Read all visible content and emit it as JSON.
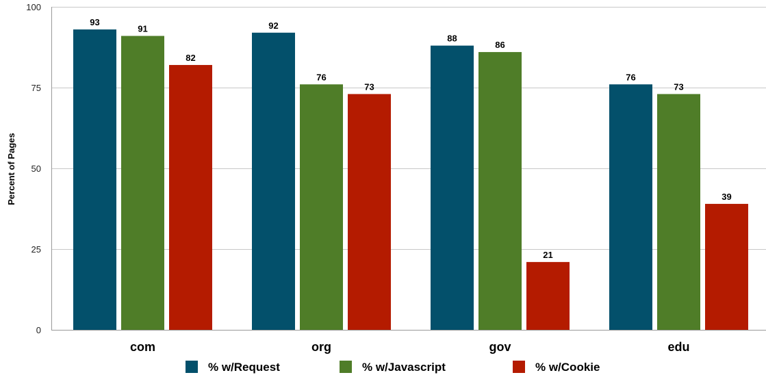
{
  "chart_data": {
    "type": "bar",
    "categories": [
      "com",
      "org",
      "gov",
      "edu"
    ],
    "series": [
      {
        "name": "% w/Request",
        "values": [
          93,
          92,
          88,
          76
        ],
        "color": "#03506b"
      },
      {
        "name": "% w/Javascript",
        "values": [
          91,
          76,
          86,
          73
        ],
        "color": "#4f7d28"
      },
      {
        "name": "% w/Cookie",
        "values": [
          82,
          73,
          21,
          39
        ],
        "color": "#b41b00"
      }
    ],
    "ylabel": "Percent of Pages",
    "xlabel": "",
    "ylim": [
      0,
      100
    ],
    "yticks": [
      0,
      25,
      50,
      75,
      100
    ],
    "grid": true,
    "legend_position": "bottom"
  }
}
